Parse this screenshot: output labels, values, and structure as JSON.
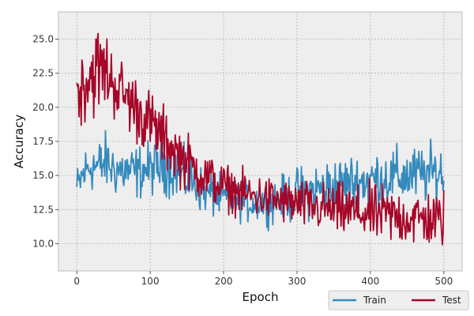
{
  "chart_data": {
    "type": "line",
    "title": "",
    "xlabel": "Epoch",
    "ylabel": "Accuracy",
    "xlim": [
      -25,
      525
    ],
    "ylim": [
      8.0,
      27.0
    ],
    "x_ticks": [
      0,
      100,
      200,
      300,
      400,
      500
    ],
    "x_tick_labels": [
      "0",
      "100",
      "200",
      "300",
      "400",
      "500"
    ],
    "y_ticks": [
      10.0,
      12.5,
      15.0,
      17.5,
      20.0,
      22.5,
      25.0
    ],
    "y_tick_labels": [
      "10.0",
      "12.5",
      "15.0",
      "17.5",
      "20.0",
      "22.5",
      "25.0"
    ],
    "grid": true,
    "legend_position": "bottom-right",
    "series": [
      {
        "name": "Train",
        "color": "#348ABD",
        "x": [
          0,
          10,
          20,
          30,
          40,
          50,
          60,
          70,
          80,
          90,
          100,
          110,
          120,
          130,
          140,
          150,
          160,
          170,
          180,
          190,
          200,
          210,
          220,
          230,
          240,
          250,
          260,
          270,
          280,
          290,
          300,
          310,
          320,
          330,
          340,
          350,
          360,
          370,
          380,
          390,
          400,
          410,
          420,
          430,
          440,
          450,
          460,
          470,
          480,
          490,
          500
        ],
        "y": [
          14.0,
          15.2,
          15.8,
          15.6,
          16.0,
          15.5,
          15.4,
          15.3,
          15.2,
          15.4,
          15.5,
          15.6,
          15.8,
          15.6,
          15.0,
          14.8,
          14.4,
          14.0,
          13.7,
          13.5,
          13.4,
          13.2,
          13.2,
          13.1,
          13.0,
          13.1,
          13.0,
          13.2,
          13.3,
          13.4,
          13.6,
          13.7,
          13.9,
          14.0,
          14.1,
          14.2,
          14.3,
          14.4,
          14.5,
          14.6,
          14.7,
          14.8,
          14.8,
          14.9,
          14.9,
          15.0,
          15.0,
          15.1,
          15.1,
          15.2,
          15.2
        ],
        "spread": [
          1.0,
          1.2,
          1.2,
          1.3,
          1.3,
          1.2,
          1.2,
          1.2,
          1.2,
          1.2,
          1.2,
          1.2,
          1.3,
          1.3,
          1.2,
          1.2,
          1.1,
          1.0,
          1.0,
          1.0,
          0.9,
          0.9,
          0.9,
          0.9,
          0.9,
          0.9,
          0.9,
          1.0,
          1.0,
          1.1,
          1.2,
          1.2,
          1.2,
          1.3,
          1.3,
          1.3,
          1.3,
          1.3,
          1.3,
          1.3,
          1.3,
          1.3,
          1.3,
          1.3,
          1.3,
          1.3,
          1.3,
          1.3,
          1.3,
          1.3,
          1.3
        ]
      },
      {
        "name": "Test",
        "color": "#A60628",
        "x": [
          0,
          10,
          20,
          30,
          40,
          50,
          60,
          70,
          80,
          90,
          100,
          110,
          120,
          130,
          140,
          150,
          160,
          170,
          180,
          190,
          200,
          210,
          220,
          230,
          240,
          250,
          260,
          270,
          280,
          290,
          300,
          310,
          320,
          330,
          340,
          350,
          360,
          370,
          380,
          390,
          400,
          410,
          420,
          430,
          440,
          450,
          460,
          470,
          480,
          490,
          500
        ],
        "y": [
          21.0,
          21.8,
          22.5,
          22.8,
          22.6,
          21.8,
          21.2,
          20.6,
          20.0,
          19.4,
          18.8,
          18.2,
          17.6,
          17.0,
          16.5,
          16.0,
          15.5,
          15.1,
          14.8,
          14.5,
          14.2,
          14.0,
          13.8,
          13.6,
          13.5,
          13.4,
          13.3,
          13.2,
          13.1,
          13.0,
          12.9,
          12.8,
          12.7,
          12.6,
          12.6,
          12.5,
          12.4,
          12.4,
          12.3,
          12.2,
          12.2,
          12.1,
          12.1,
          12.0,
          12.0,
          11.9,
          11.9,
          11.8,
          11.8,
          11.7,
          11.8
        ],
        "spread": [
          1.4,
          1.8,
          2.0,
          2.0,
          1.8,
          1.6,
          1.5,
          1.5,
          1.5,
          1.5,
          1.5,
          1.5,
          1.4,
          1.3,
          1.3,
          1.3,
          1.2,
          1.2,
          1.1,
          1.1,
          1.0,
          1.0,
          1.0,
          1.0,
          1.0,
          1.0,
          1.0,
          1.0,
          1.0,
          1.0,
          1.1,
          1.1,
          1.1,
          1.1,
          1.1,
          1.2,
          1.2,
          1.2,
          1.2,
          1.2,
          1.3,
          1.3,
          1.3,
          1.3,
          1.3,
          1.3,
          1.3,
          1.3,
          1.3,
          1.3,
          1.3
        ]
      }
    ]
  },
  "style": {
    "plot_background": "#EEEEEE",
    "grid_color": "#B2B2B2",
    "axis_edge_color": "#BCBCBC"
  }
}
